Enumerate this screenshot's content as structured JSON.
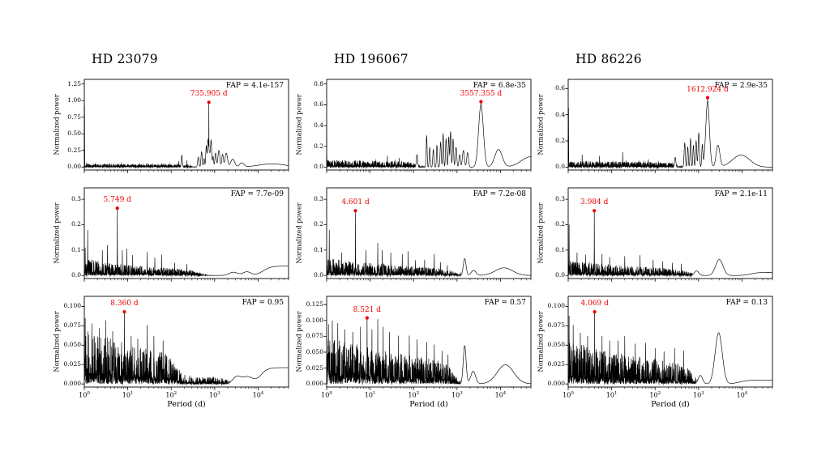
{
  "figure": {
    "columns": [
      {
        "title": "HD 23079"
      },
      {
        "title": "HD 196067"
      },
      {
        "title": "HD 86226"
      }
    ],
    "xlabel": "Period (d)",
    "ylabel": "Normalized power",
    "xtick_labels": [
      "10^0",
      "10^1",
      "10^2",
      "10^3",
      "10^4"
    ],
    "colors": {
      "line": "#000000",
      "peak": "#f00000",
      "background": "#ffffff"
    }
  },
  "chart_data": [
    {
      "type": "line",
      "star": "HD 23079",
      "row": 0,
      "col": 0,
      "seed": 1,
      "fap_label": "FAP = 4.1e-157",
      "peak": {
        "label": "735.905 d",
        "period": 735.905,
        "power": 0.975
      },
      "xlim": [
        1,
        50000
      ],
      "ylim": [
        -0.045,
        1.32
      ],
      "yticks": [
        0,
        0.25,
        0.5,
        0.75,
        1.0,
        1.25
      ],
      "ytick_labels": [
        "0.00",
        "0.25",
        "0.50",
        "0.75",
        "1.00",
        "1.25"
      ],
      "noise": [
        [
          0.05,
          0.1,
          2.38
        ]
      ],
      "spikes": [
        [
          1.01,
          0.93
        ],
        [
          150,
          0.09
        ],
        [
          230,
          0.1
        ]
      ],
      "bumps": [
        [
          175,
          0.18,
          0.012
        ],
        [
          420,
          0.15,
          0.015
        ],
        [
          500,
          0.23,
          0.014
        ],
        [
          570,
          0.13,
          0.012
        ],
        [
          640,
          0.29,
          0.012
        ],
        [
          700,
          0.22,
          0.01
        ],
        [
          736,
          0.25,
          0.03
        ],
        [
          830,
          0.35,
          0.013
        ],
        [
          920,
          0.16,
          0.012
        ],
        [
          1050,
          0.21,
          0.016
        ],
        [
          1250,
          0.25,
          0.022
        ],
        [
          1520,
          0.19,
          0.018
        ],
        [
          1850,
          0.21,
          0.028
        ],
        [
          2600,
          0.12,
          0.045
        ],
        [
          4200,
          0.06,
          0.05
        ],
        [
          21000,
          0.048,
          0.3
        ]
      ],
      "plateau": null
    },
    {
      "type": "line",
      "star": "HD 196067",
      "row": 0,
      "col": 1,
      "seed": 2,
      "fap_label": "FAP = 6.8e-35",
      "peak": {
        "label": "3557.355 d",
        "period": 3557.355,
        "power": 0.63
      },
      "xlim": [
        1,
        50000
      ],
      "ylim": [
        -0.028,
        0.845
      ],
      "yticks": [
        0,
        0.2,
        0.4,
        0.6,
        0.8
      ],
      "ytick_labels": [
        "0.0",
        "0.2",
        "0.4",
        "0.6",
        "0.8"
      ],
      "noise": [
        [
          0.07,
          0.12,
          2.05
        ]
      ],
      "spikes": [
        [
          1.0,
          0.42
        ],
        [
          25,
          0.11
        ],
        [
          47,
          0.09
        ]
      ],
      "bumps": [
        [
          120,
          0.12,
          0.015
        ],
        [
          200,
          0.3,
          0.011
        ],
        [
          235,
          0.19,
          0.011
        ],
        [
          285,
          0.17,
          0.013
        ],
        [
          345,
          0.21,
          0.011
        ],
        [
          420,
          0.24,
          0.013
        ],
        [
          480,
          0.32,
          0.011
        ],
        [
          560,
          0.27,
          0.013
        ],
        [
          645,
          0.29,
          0.011
        ],
        [
          710,
          0.34,
          0.012
        ],
        [
          810,
          0.27,
          0.013
        ],
        [
          950,
          0.19,
          0.016
        ],
        [
          1150,
          0.12,
          0.016
        ],
        [
          1400,
          0.16,
          0.022
        ],
        [
          1750,
          0.14,
          0.02
        ],
        [
          3557,
          0.6,
          0.055
        ],
        [
          9000,
          0.17,
          0.085
        ],
        [
          50000,
          0.1,
          0.22
        ]
      ],
      "plateau": null
    },
    {
      "type": "line",
      "star": "HD 86226",
      "row": 0,
      "col": 2,
      "seed": 3,
      "fap_label": "FAP = 2.9e-35",
      "peak": {
        "label": "1612.924 d",
        "period": 1612.924,
        "power": 0.53
      },
      "xlim": [
        1,
        50000
      ],
      "ylim": [
        -0.022,
        0.67
      ],
      "yticks": [
        0,
        0.2,
        0.4,
        0.6
      ],
      "ytick_labels": [
        "0.0",
        "0.2",
        "0.4",
        "0.6"
      ],
      "noise": [
        [
          0.048,
          0.1,
          2.5
        ]
      ],
      "spikes": [
        [
          1.02,
          0.45
        ],
        [
          2.1,
          0.095
        ],
        [
          5.2,
          0.085
        ],
        [
          18,
          0.115
        ],
        [
          70,
          0.06
        ]
      ],
      "bumps": [
        [
          290,
          0.075,
          0.015
        ],
        [
          480,
          0.185,
          0.014
        ],
        [
          565,
          0.155,
          0.012
        ],
        [
          655,
          0.215,
          0.012
        ],
        [
          760,
          0.165,
          0.012
        ],
        [
          880,
          0.2,
          0.013
        ],
        [
          1010,
          0.26,
          0.015
        ],
        [
          1220,
          0.165,
          0.013
        ],
        [
          1613,
          0.5,
          0.042
        ],
        [
          2800,
          0.165,
          0.042
        ],
        [
          9500,
          0.092,
          0.2
        ]
      ],
      "plateau": null
    },
    {
      "type": "line",
      "star": "HD 23079",
      "row": 1,
      "col": 0,
      "seed": 4,
      "fap_label": "FAP = 7.7e-09",
      "peak": {
        "label": "5.749 d",
        "period": 5.749,
        "power": 0.265
      },
      "xlim": [
        1,
        50000
      ],
      "ylim": [
        -0.012,
        0.345
      ],
      "yticks": [
        0,
        0.1,
        0.2,
        0.3
      ],
      "ytick_labels": [
        "0.0",
        "0.1",
        "0.2",
        "0.3"
      ],
      "noise": [
        [
          0.065,
          0.4,
          2.62
        ]
      ],
      "spikes": [
        [
          1.05,
          0.11
        ],
        [
          1.2,
          0.18
        ],
        [
          2.6,
          0.1
        ],
        [
          3.4,
          0.12
        ],
        [
          7.5,
          0.1
        ],
        [
          9.5,
          0.105
        ],
        [
          13,
          0.08
        ],
        [
          28,
          0.092
        ],
        [
          42,
          0.07
        ],
        [
          60,
          0.082
        ],
        [
          120,
          0.05
        ],
        [
          230,
          0.045
        ]
      ],
      "bumps": [
        [
          2700,
          0.013,
          0.1
        ],
        [
          5500,
          0.014,
          0.09
        ]
      ],
      "plateau": [
        0.037,
        4.12,
        0.09
      ]
    },
    {
      "type": "line",
      "star": "HD 196067",
      "row": 1,
      "col": 1,
      "seed": 5,
      "fap_label": "FAP = 7.2e-08",
      "peak": {
        "label": "4.601 d",
        "period": 4.601,
        "power": 0.255
      },
      "xlim": [
        1,
        50000
      ],
      "ylim": [
        -0.012,
        0.345
      ],
      "yticks": [
        0,
        0.1,
        0.2,
        0.3
      ],
      "ytick_labels": [
        "0.0",
        "0.1",
        "0.2",
        "0.3"
      ],
      "noise": [
        [
          0.068,
          0.33,
          2.95
        ]
      ],
      "spikes": [
        [
          1.15,
          0.18
        ],
        [
          2.2,
          0.09
        ],
        [
          8,
          0.1
        ],
        [
          15,
          0.128
        ],
        [
          19,
          0.1
        ],
        [
          30,
          0.09
        ],
        [
          55,
          0.085
        ],
        [
          75,
          0.095
        ],
        [
          110,
          0.06
        ],
        [
          180,
          0.062
        ],
        [
          300,
          0.085
        ],
        [
          420,
          0.052
        ],
        [
          600,
          0.04
        ]
      ],
      "bumps": [
        [
          1500,
          0.066,
          0.032
        ],
        [
          2400,
          0.02,
          0.055
        ],
        [
          12000,
          0.03,
          0.2
        ]
      ],
      "plateau": null
    },
    {
      "type": "line",
      "star": "HD 86226",
      "row": 1,
      "col": 2,
      "seed": 6,
      "fap_label": "FAP = 2.1e-11",
      "peak": {
        "label": "3.984 d",
        "period": 3.984,
        "power": 0.255
      },
      "xlim": [
        1,
        50000
      ],
      "ylim": [
        -0.012,
        0.345
      ],
      "yticks": [
        0,
        0.1,
        0.2,
        0.3
      ],
      "ytick_labels": [
        "0.0",
        "0.1",
        "0.2",
        "0.3"
      ],
      "noise": [
        [
          0.058,
          0.3,
          2.78
        ]
      ],
      "spikes": [
        [
          1.05,
          0.2
        ],
        [
          1.6,
          0.09
        ],
        [
          2.5,
          0.082
        ],
        [
          6,
          0.085
        ],
        [
          9,
          0.072
        ],
        [
          20,
          0.076
        ],
        [
          45,
          0.08
        ],
        [
          90,
          0.062
        ],
        [
          150,
          0.056
        ],
        [
          250,
          0.05
        ],
        [
          400,
          0.046
        ]
      ],
      "bumps": [
        [
          900,
          0.018,
          0.05
        ],
        [
          3000,
          0.063,
          0.085
        ]
      ],
      "plateau": [
        0.012,
        4.2,
        0.08
      ]
    },
    {
      "type": "line",
      "star": "HD 23079",
      "row": 2,
      "col": 0,
      "seed": 7,
      "fap_label": "FAP = 0.95",
      "peak": {
        "label": "8.360 d",
        "period": 8.36,
        "power": 0.093
      },
      "xlim": [
        1,
        50000
      ],
      "ylim": [
        -0.004,
        0.113
      ],
      "yticks": [
        0,
        0.025,
        0.05,
        0.075,
        0.1
      ],
      "ytick_labels": [
        "0.000",
        "0.025",
        "0.050",
        "0.075",
        "0.100"
      ],
      "noise": [
        [
          0.062,
          0.36,
          2.12
        ],
        [
          0.009,
          0,
          3.3
        ]
      ],
      "spikes": [
        [
          1.05,
          0.085
        ],
        [
          1.5,
          0.078
        ],
        [
          2.2,
          0.072
        ],
        [
          3.1,
          0.082
        ],
        [
          4.5,
          0.068
        ],
        [
          12,
          0.062
        ],
        [
          17,
          0.058
        ],
        [
          28,
          0.076
        ],
        [
          40,
          0.062
        ],
        [
          65,
          0.056
        ]
      ],
      "bumps": [
        [
          3200,
          0.009,
          0.09
        ],
        [
          5600,
          0.009,
          0.12
        ]
      ],
      "plateau": [
        0.021,
        4.05,
        0.08
      ]
    },
    {
      "type": "line",
      "star": "HD 196067",
      "row": 2,
      "col": 1,
      "seed": 8,
      "fap_label": "FAP = 0.57",
      "peak": {
        "label": "8.521 d",
        "period": 8.521,
        "power": 0.104
      },
      "xlim": [
        1,
        50000
      ],
      "ylim": [
        -0.005,
        0.138
      ],
      "yticks": [
        0,
        0.025,
        0.05,
        0.075,
        0.1,
        0.125
      ],
      "ytick_labels": [
        "0.000",
        "0.025",
        "0.050",
        "0.075",
        "0.100",
        "0.125"
      ],
      "noise": [
        [
          0.075,
          0.26,
          2.92
        ]
      ],
      "spikes": [
        [
          1.1,
          0.094
        ],
        [
          1.35,
          0.1
        ],
        [
          1.8,
          0.096
        ],
        [
          2.6,
          0.086
        ],
        [
          4,
          0.082
        ],
        [
          6,
          0.09
        ],
        [
          11,
          0.086
        ],
        [
          15,
          0.102
        ],
        [
          20,
          0.09
        ],
        [
          28,
          0.082
        ],
        [
          45,
          0.076
        ],
        [
          80,
          0.076
        ],
        [
          120,
          0.07
        ],
        [
          200,
          0.066
        ],
        [
          300,
          0.062
        ],
        [
          450,
          0.052
        ],
        [
          620,
          0.046
        ]
      ],
      "bumps": [
        [
          1500,
          0.06,
          0.033
        ],
        [
          2350,
          0.02,
          0.055
        ],
        [
          13000,
          0.03,
          0.19
        ]
      ],
      "plateau": null
    },
    {
      "type": "line",
      "star": "HD 86226",
      "row": 2,
      "col": 2,
      "seed": 9,
      "fap_label": "FAP = 0.13",
      "peak": {
        "label": "4.069 d",
        "period": 4.069,
        "power": 0.093
      },
      "xlim": [
        1,
        50000
      ],
      "ylim": [
        -0.004,
        0.113
      ],
      "yticks": [
        0,
        0.025,
        0.05,
        0.075,
        0.1
      ],
      "ytick_labels": [
        "0.000",
        "0.025",
        "0.050",
        "0.075",
        "0.100"
      ],
      "noise": [
        [
          0.056,
          0.28,
          2.88
        ]
      ],
      "spikes": [
        [
          1.05,
          0.088
        ],
        [
          1.3,
          0.076
        ],
        [
          1.9,
          0.066
        ],
        [
          2.8,
          0.062
        ],
        [
          6,
          0.062
        ],
        [
          9,
          0.056
        ],
        [
          14,
          0.056
        ],
        [
          20,
          0.062
        ],
        [
          35,
          0.052
        ],
        [
          60,
          0.053
        ],
        [
          100,
          0.046
        ],
        [
          160,
          0.042
        ],
        [
          280,
          0.046
        ],
        [
          450,
          0.043
        ]
      ],
      "bumps": [
        [
          1100,
          0.011,
          0.05
        ],
        [
          2900,
          0.066,
          0.082
        ]
      ],
      "plateau": [
        0.005,
        3.95,
        0.1
      ]
    }
  ]
}
